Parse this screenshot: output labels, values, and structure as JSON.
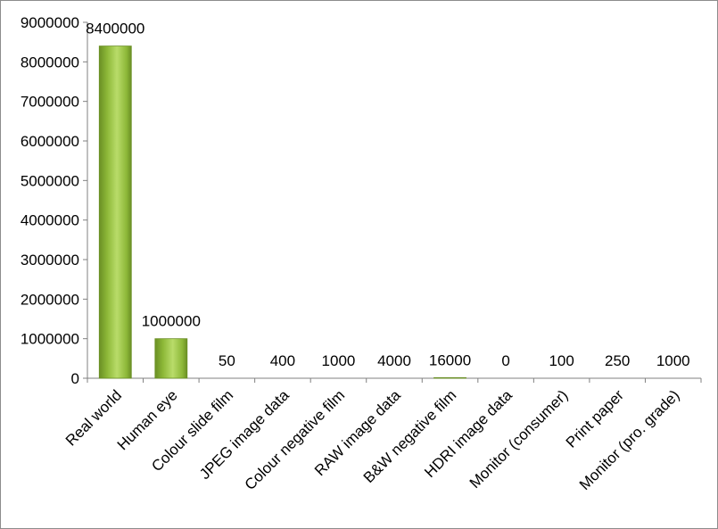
{
  "chart_data": {
    "type": "bar",
    "categories": [
      "Real world",
      "Human eye",
      "Colour slide film",
      "JPEG image data",
      "Colour negative film",
      "RAW image data",
      "B&W negative film",
      "HDRI image data",
      "Monitor (consumer)",
      "Print paper",
      "Monitor (pro. grade)"
    ],
    "values": [
      8400000,
      1000000,
      50,
      400,
      1000,
      4000,
      16000,
      0,
      100,
      250,
      1000
    ],
    "data_labels": [
      "8400000",
      "1000000",
      "50",
      "400",
      "1000",
      "4000",
      "16000",
      "0",
      "100",
      "250",
      "1000"
    ],
    "yticks": [
      "0",
      "1000000",
      "2000000",
      "3000000",
      "4000000",
      "5000000",
      "6000000",
      "7000000",
      "8000000",
      "9000000"
    ],
    "ylim": [
      0,
      9000000
    ],
    "grid": false,
    "legend": "none",
    "bar_color": "#8db838",
    "bar_color_dark": "#6a8f24",
    "bar_color_light": "#b9dc6a",
    "axis_color": "#808080"
  }
}
